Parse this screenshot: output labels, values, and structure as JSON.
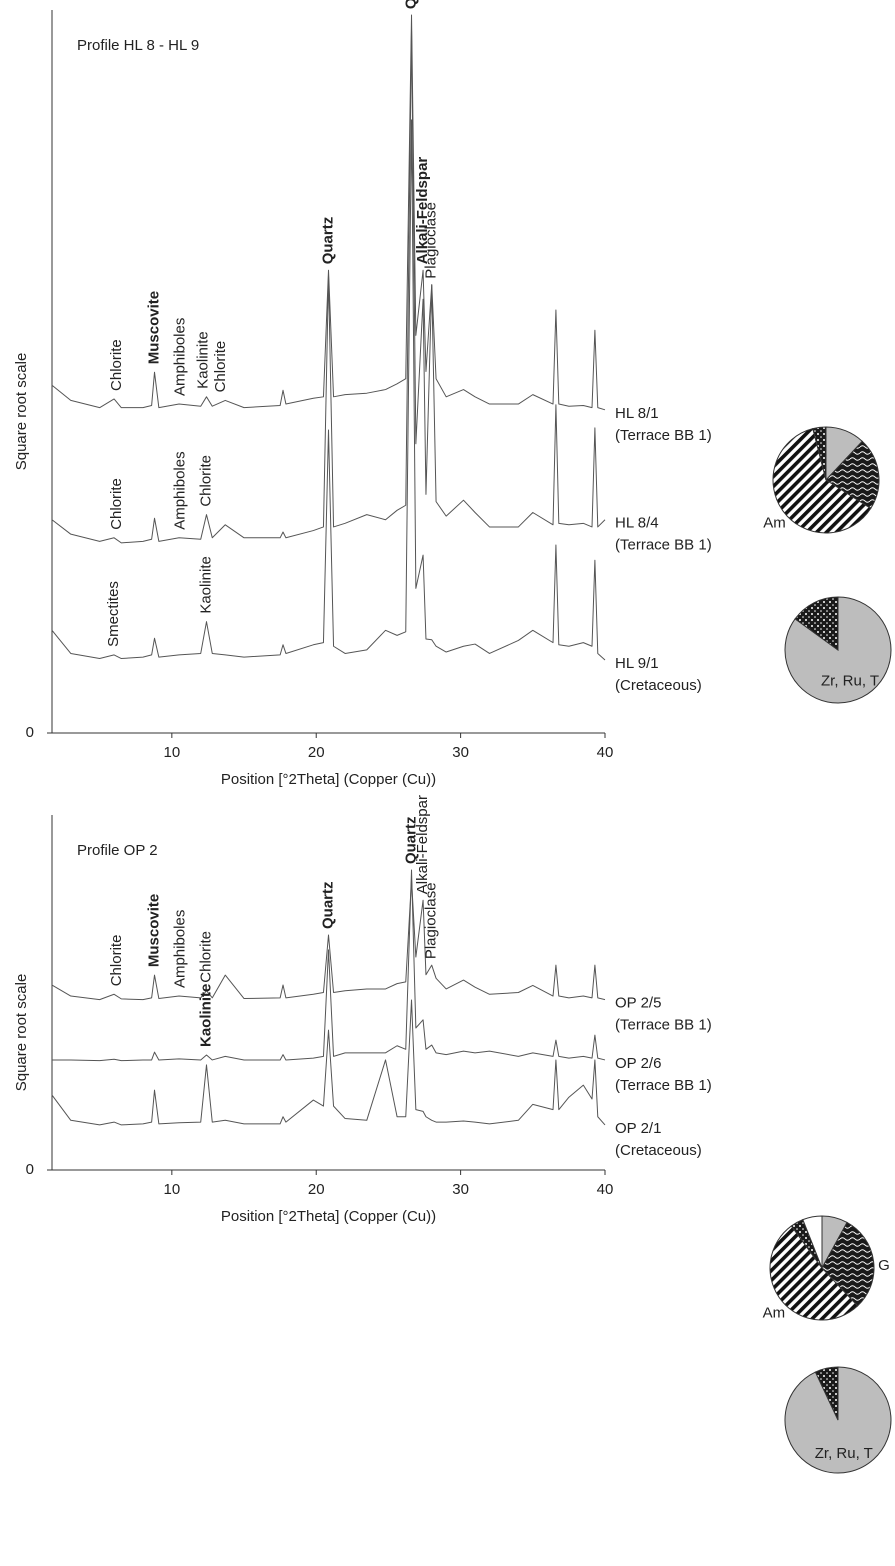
{
  "chart_data": [
    {
      "type": "line",
      "title": "Profile HL 8 - HL 9",
      "x_label": "Position [°2Theta] (Copper (Cu))",
      "y_label": "Square root scale",
      "xlim": [
        1.7,
        40
      ],
      "ylim": [
        0,
        100
      ],
      "xticks": [
        10,
        20,
        30,
        40
      ],
      "yticks": [
        0
      ],
      "x": [
        1.7,
        3,
        5,
        6,
        6.5,
        8,
        8.6,
        8.8,
        9.1,
        10.5,
        12,
        12.4,
        12.8,
        13.7,
        15,
        17.5,
        17.7,
        17.9,
        19.8,
        20.5,
        20.85,
        21.2,
        22,
        23.5,
        24.8,
        25.6,
        26.2,
        26.6,
        26.9,
        27.4,
        27.6,
        28,
        28.3,
        29,
        30.2,
        31,
        32,
        34,
        35,
        36.4,
        36.6,
        36.8,
        37.5,
        38.5,
        39.1,
        39.3,
        39.5,
        40
      ],
      "series": [
        {
          "name": "HL 8/1",
          "period": "(Terrace BB 1)",
          "color": "#555555",
          "values": [
            48.1,
            46,
            45,
            46.2,
            45,
            45,
            45.3,
            49.9,
            45,
            45.5,
            45.2,
            46.5,
            45.2,
            46,
            45,
            45.3,
            47.4,
            45.5,
            46.3,
            46.5,
            64,
            46.5,
            46.8,
            47,
            47.5,
            48.3,
            49,
            99.3,
            55,
            64,
            50,
            62,
            49,
            46.5,
            47.5,
            46.5,
            45.5,
            45.5,
            46.8,
            45.5,
            58.5,
            45.5,
            45.2,
            45.3,
            45,
            55.7,
            45,
            44.7
          ],
          "annotations": [
            {
              "text": "Chlorite",
              "x": 6.2
            },
            {
              "text": "Muscovite",
              "x": 8.8,
              "bold": true
            },
            {
              "text": "Amphiboles",
              "x": 10.6
            },
            {
              "text": "Kaolinite",
              "x": 12.2
            },
            {
              "text": "Chlorite",
              "x": 13.4
            }
          ]
        },
        {
          "name": "HL 8/4",
          "period": "(Terrace BB 1)",
          "color": "#555555",
          "values": [
            29.5,
            27.5,
            26.5,
            27,
            26.3,
            26.5,
            26.8,
            29.7,
            26.5,
            27,
            26.8,
            30.2,
            27,
            28.8,
            27,
            27,
            27.8,
            27,
            28,
            28.5,
            63.3,
            28.5,
            29,
            30.2,
            29.5,
            30.8,
            31.5,
            97.2,
            40,
            60,
            33,
            62,
            32,
            30,
            32.2,
            30.5,
            28.5,
            28.5,
            30.5,
            28.8,
            45.4,
            29,
            28.8,
            29,
            28.5,
            42.2,
            28.5,
            29.5
          ],
          "annotations": [
            {
              "text": "Chlorite",
              "x": 6.2
            },
            {
              "text": "Amphiboles",
              "x": 10.6
            },
            {
              "text": "Chlorite",
              "x": 12.4
            }
          ]
        },
        {
          "name": "HL 9/1",
          "period": "(Cretaceous)",
          "color": "#555555",
          "values": [
            14.2,
            11,
            10.3,
            10.8,
            10.3,
            10.5,
            10.8,
            13.1,
            10.5,
            10.8,
            11,
            15.4,
            11,
            10.8,
            10.5,
            10.8,
            12.2,
            11,
            12.2,
            12.5,
            41.9,
            12,
            11,
            11.5,
            14.2,
            13.5,
            14,
            84.8,
            20,
            24.6,
            13,
            12.9,
            12,
            11.2,
            12,
            12.3,
            11,
            12.8,
            14.2,
            12.5,
            26,
            12.2,
            12,
            12.5,
            12,
            23.9,
            11,
            10.1
          ],
          "annotations": [
            {
              "text": "Smectites",
              "x": 6.0
            },
            {
              "text": "Kaolinite",
              "x": 12.4
            }
          ]
        }
      ],
      "annotations": [
        {
          "text": "Quartz",
          "x": 26.6,
          "bold": true
        },
        {
          "text": "Quartz",
          "x": 20.85,
          "bold": true
        },
        {
          "text": "Alkali-Feldspar",
          "x": 27.4,
          "bold": true
        },
        {
          "text": "Plagioclase",
          "x": 28
        }
      ]
    },
    {
      "type": "pie",
      "categories": [
        null,
        null,
        "Am",
        null
      ],
      "values": [
        12,
        22,
        62,
        4
      ],
      "colors": [
        "#bdbdbd",
        "#222222",
        "#222222",
        "#222222"
      ],
      "patterns": [
        "solid",
        "wavy",
        "hatch",
        "dots"
      ],
      "label_position": "outside"
    },
    {
      "type": "pie",
      "categories": [
        "Zr, Ru, T",
        null
      ],
      "values": [
        85,
        15
      ],
      "colors": [
        "#bdbdbd",
        "#222222"
      ],
      "patterns": [
        "solid",
        "dots"
      ],
      "label_position": "inside"
    },
    {
      "type": "line",
      "title": "Profile OP 2",
      "x_label": "Position [°2Theta] (Copper (Cu))",
      "y_label": "Square root scale",
      "xlim": [
        1.7,
        40
      ],
      "ylim": [
        0,
        100
      ],
      "xticks": [
        10,
        20,
        30,
        40
      ],
      "yticks": [
        0
      ],
      "x": [
        1.7,
        3,
        5,
        6,
        6.5,
        8,
        8.6,
        8.8,
        9.1,
        10.5,
        12,
        12.4,
        12.8,
        13.7,
        15,
        17.5,
        17.7,
        17.9,
        19.8,
        20.5,
        20.85,
        21.2,
        22,
        23.5,
        24.8,
        25.6,
        26.2,
        26.6,
        26.9,
        27.4,
        27.6,
        28,
        28.3,
        29,
        30.2,
        31,
        32,
        34,
        35,
        36.4,
        36.6,
        36.8,
        37.5,
        38.5,
        39.1,
        39.3,
        39.5,
        40
      ],
      "series": [
        {
          "name": "OP 2/5",
          "period": "(Terrace BB 1)",
          "color": "#555555",
          "values": [
            52.1,
            49,
            48,
            49.5,
            48.2,
            48,
            48.5,
            54.9,
            48.3,
            49,
            48.5,
            50.5,
            48.5,
            54.9,
            48.3,
            48.5,
            52.1,
            48.5,
            49.5,
            50,
            66.2,
            50,
            50.5,
            51,
            51,
            52.5,
            53,
            81.7,
            60,
            76,
            55,
            57.7,
            54,
            51,
            53.5,
            51.5,
            49.5,
            50,
            52,
            49,
            57.7,
            49,
            48.5,
            49,
            48.5,
            57.7,
            48.5,
            48
          ],
          "annotations": [
            {
              "text": "Chlorite",
              "x": 6.2
            },
            {
              "text": "Muscovite",
              "x": 8.8,
              "bold": true
            },
            {
              "text": "Amphiboles",
              "x": 10.6
            },
            {
              "text": "Chlorite",
              "x": 12.4
            }
          ]
        },
        {
          "name": "OP 2/6",
          "period": "(Terrace BB 1)",
          "color": "#555555",
          "values": [
            31,
            31,
            30.8,
            31.2,
            30.8,
            31,
            31,
            33.2,
            31,
            31.3,
            31,
            32.4,
            31,
            32,
            31,
            31,
            32.5,
            31,
            31.5,
            32,
            62,
            32,
            33,
            33,
            33,
            35,
            34,
            84.5,
            40,
            42.3,
            34,
            35.2,
            33,
            32.5,
            33.5,
            33,
            33.5,
            32,
            33,
            32,
            36.6,
            32,
            31.5,
            32,
            31.5,
            38,
            31.5,
            31
          ],
          "annotations": [
            {
              "text": "Kaolinite",
              "x": 12.4,
              "bold": true
            }
          ]
        },
        {
          "name": "OP 2/1",
          "period": "(Cretaceous)",
          "color": "#555555",
          "values": [
            21.1,
            14,
            12.7,
            13.5,
            12.7,
            13,
            13.5,
            22.5,
            13,
            13.3,
            13.5,
            29.6,
            13.5,
            14,
            13,
            13,
            15,
            13.5,
            19.7,
            18,
            39.4,
            18,
            14.5,
            14,
            31,
            15,
            15,
            47.9,
            17,
            16.5,
            15,
            14,
            13.5,
            13.5,
            13.8,
            13.5,
            13,
            14,
            18.5,
            17,
            31,
            17,
            20.5,
            23.9,
            20,
            31,
            15,
            12.7
          ],
          "annotations": []
        }
      ],
      "annotations": [
        {
          "text": "Quartz",
          "x": 26.6,
          "bold": true
        },
        {
          "text": "Alkali-Feldspar",
          "x": 27.4
        },
        {
          "text": "Plagioclase",
          "x": 28
        },
        {
          "text": "Quartz",
          "x": 20.85,
          "bold": true
        }
      ]
    },
    {
      "type": "pie",
      "categories": [
        null,
        "G",
        "Am",
        null,
        null
      ],
      "values": [
        8,
        30,
        52,
        4,
        6
      ],
      "colors": [
        "#bdbdbd",
        "#222222",
        "#222222",
        "#222222",
        "#ffffff"
      ],
      "patterns": [
        "solid",
        "wavy",
        "hatch",
        "dots",
        "solid"
      ],
      "label_position": "outside"
    },
    {
      "type": "pie",
      "categories": [
        "Zr, Ru, T",
        null
      ],
      "values": [
        93,
        7
      ],
      "colors": [
        "#bdbdbd",
        "#222222"
      ],
      "patterns": [
        "solid",
        "dots"
      ],
      "label_position": "inside"
    }
  ]
}
